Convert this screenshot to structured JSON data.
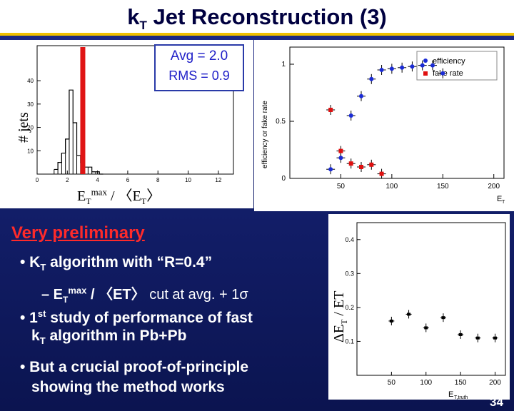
{
  "slide": {
    "title_main": "k",
    "title_sub": "T",
    "title_rest": " Jet Reconstruction (3)",
    "page_number": "34"
  },
  "histogram": {
    "ylabel": "# jets",
    "xlabel_main": "E",
    "xlabel_sub": "T",
    "xlabel_sup": "max",
    "xlabel_rest": " / 〈E",
    "xlabel_sub2": "T",
    "xlabel_end": "〉",
    "avg_label": "Avg = 2.0",
    "rms_label": "RMS = 0.9",
    "x_ticks": [
      "0",
      "2",
      "4",
      "6",
      "8",
      "10",
      "12"
    ],
    "y_ticks": [
      "10",
      "20",
      "30",
      "40"
    ]
  },
  "efficiency": {
    "ylabel": "efficiency or fake rate",
    "xlabel": "E",
    "xlabel_sub": "T",
    "legend_eff": "efficiency",
    "legend_fake": "fake rate",
    "x_ticks": [
      "50",
      "100",
      "150",
      "200"
    ],
    "y_ticks": [
      "0",
      "0.5",
      "1"
    ]
  },
  "resolution": {
    "ylabel": "ΔE",
    "ylabel_sub": "T",
    "ylabel_rest": " / ET",
    "xlabel": "E",
    "xlabel_sub": "T,truth",
    "x_ticks": [
      "50",
      "100",
      "150",
      "200"
    ],
    "y_ticks": [
      "0.1",
      "0.2",
      "0.3",
      "0.4"
    ]
  },
  "text": {
    "preliminary": "Very preliminary",
    "b1_pre": "• K",
    "b1_sub": "T",
    "b1_post": " algorithm with “R=0.4”",
    "b2_pre": "– E",
    "b2_sub": "T",
    "b2_sup": "max",
    "b2_mid": " / 〈ET〉",
    "b2_post": " cut at avg. + 1σ",
    "b3_pre": "• 1",
    "b3_sup": "st",
    "b3_post": " study of performance of fast",
    "b3_line2_pre": "k",
    "b3_line2_sub": "T",
    "b3_line2_post": " algorithm in Pb+Pb",
    "b4_line1": "• But a crucial proof-of-principle",
    "b4_line2": "showing the method works"
  },
  "chart_data": [
    {
      "type": "bar",
      "title": "",
      "xlabel": "ET max / <ET>",
      "ylabel": "# jets",
      "xlim": [
        0,
        13
      ],
      "ylim": [
        0,
        55
      ],
      "bin_centers": [
        1.25,
        1.5,
        1.75,
        2.0,
        2.25,
        2.5,
        2.75,
        3.0,
        3.25,
        3.5,
        3.75,
        4.0,
        4.25
      ],
      "values": [
        2,
        5,
        9,
        15,
        36,
        22,
        8,
        5,
        3,
        3,
        1,
        1,
        0
      ],
      "cut_line": 3.0
    },
    {
      "type": "scatter",
      "xlabel": "ET",
      "ylabel": "efficiency or fake rate",
      "xlim": [
        0,
        210
      ],
      "ylim": [
        0,
        1.15
      ],
      "series": [
        {
          "name": "efficiency",
          "color": "#1a2bd6",
          "x": [
            40,
            50,
            60,
            70,
            80,
            90,
            100,
            110,
            120,
            130,
            140,
            150
          ],
          "y": [
            0.08,
            0.18,
            0.55,
            0.72,
            0.87,
            0.95,
            0.96,
            0.97,
            0.98,
            0.99,
            0.99,
            0.92
          ]
        },
        {
          "name": "fake rate",
          "color": "#e01010",
          "x": [
            40,
            50,
            60,
            70,
            80,
            90
          ],
          "y": [
            0.6,
            0.24,
            0.13,
            0.1,
            0.12,
            0.04
          ]
        }
      ]
    },
    {
      "type": "scatter",
      "xlabel": "ET,truth",
      "ylabel": "ΔET / ET",
      "xlim": [
        0,
        215
      ],
      "ylim": [
        0,
        0.45
      ],
      "series": [
        {
          "name": "resolution",
          "color": "#000000",
          "x": [
            50,
            75,
            100,
            125,
            150,
            175,
            200
          ],
          "y": [
            0.16,
            0.18,
            0.14,
            0.17,
            0.12,
            0.11,
            0.11
          ]
        }
      ]
    }
  ]
}
